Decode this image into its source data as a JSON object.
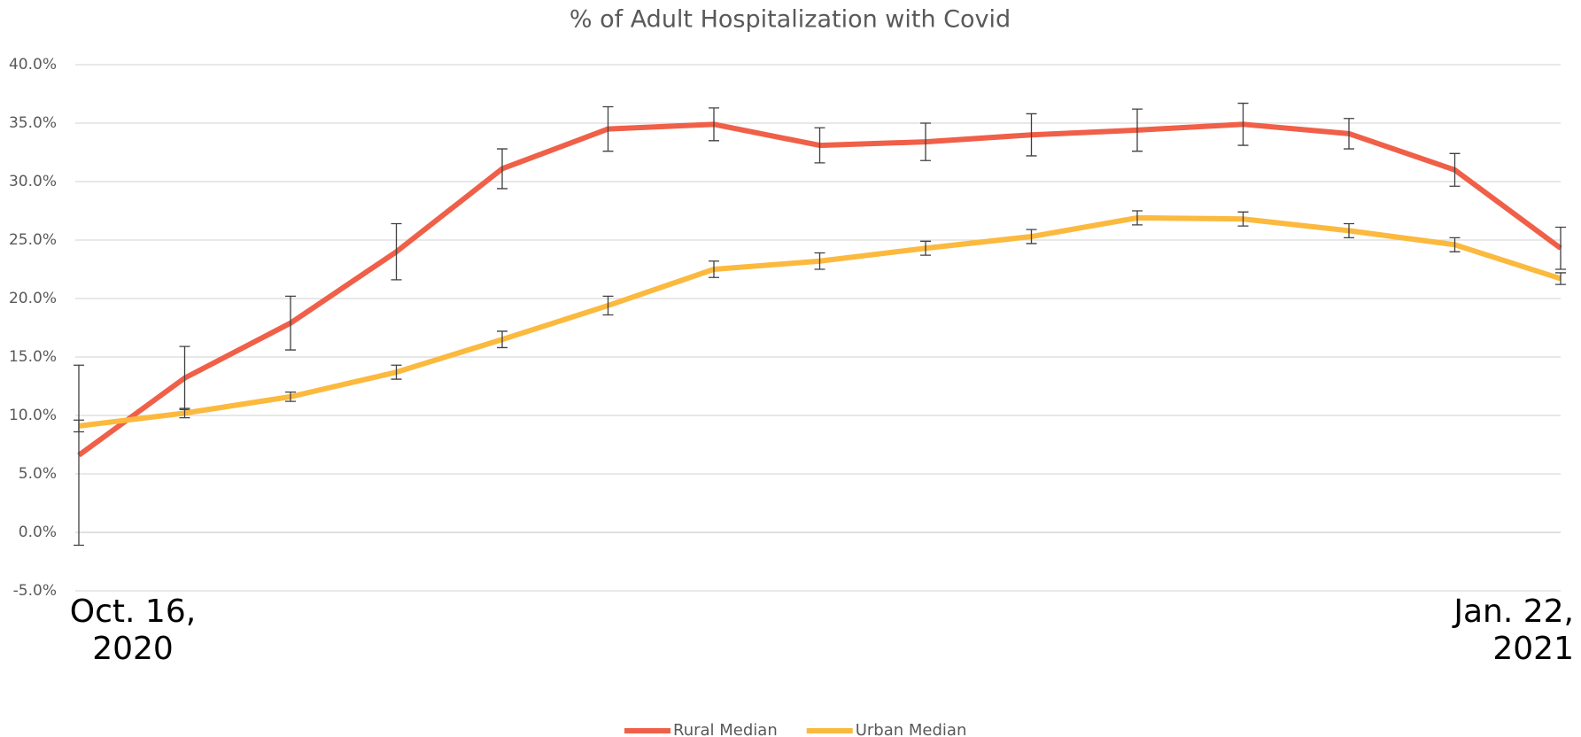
{
  "chart_data": {
    "type": "line",
    "title": "% of Adult Hospitalization with Covid",
    "categories": [
      "Oct. 16, 2020",
      null,
      null,
      null,
      null,
      null,
      null,
      null,
      null,
      null,
      null,
      null,
      null,
      null,
      "Jan. 22, 2021"
    ],
    "series": [
      {
        "name": "Rural Median",
        "color": "#f05f48",
        "values": [
          6.6,
          13.2,
          17.9,
          24.0,
          31.1,
          34.5,
          34.9,
          33.1,
          33.4,
          34.0,
          34.4,
          34.9,
          34.1,
          31.0,
          24.3
        ],
        "errors": [
          7.7,
          2.7,
          2.3,
          2.4,
          1.7,
          1.9,
          1.4,
          1.5,
          1.6,
          1.8,
          1.8,
          1.8,
          1.3,
          1.4,
          1.8
        ]
      },
      {
        "name": "Urban Median",
        "color": "#fbb93e",
        "values": [
          9.1,
          10.2,
          11.6,
          13.7,
          16.5,
          19.4,
          22.5,
          23.2,
          24.3,
          25.3,
          26.9,
          26.8,
          25.8,
          24.6,
          21.7
        ],
        "errors": [
          0.5,
          0.4,
          0.4,
          0.6,
          0.7,
          0.8,
          0.7,
          0.7,
          0.6,
          0.6,
          0.6,
          0.6,
          0.6,
          0.6,
          0.5
        ]
      }
    ],
    "ylim": [
      -5,
      40
    ],
    "yticks": [
      {
        "value": -5,
        "label": "-5.0%"
      },
      {
        "value": 0,
        "label": "0.0%"
      },
      {
        "value": 5,
        "label": "5.0%"
      },
      {
        "value": 10,
        "label": "10.0%"
      },
      {
        "value": 15,
        "label": "15.0%"
      },
      {
        "value": 20,
        "label": "20.0%"
      },
      {
        "value": 25,
        "label": "25.0%"
      },
      {
        "value": 30,
        "label": "30.0%"
      },
      {
        "value": 35,
        "label": "35.0%"
      },
      {
        "value": 40,
        "label": "40.0%"
      }
    ],
    "grid": true,
    "legend": "bottom"
  }
}
